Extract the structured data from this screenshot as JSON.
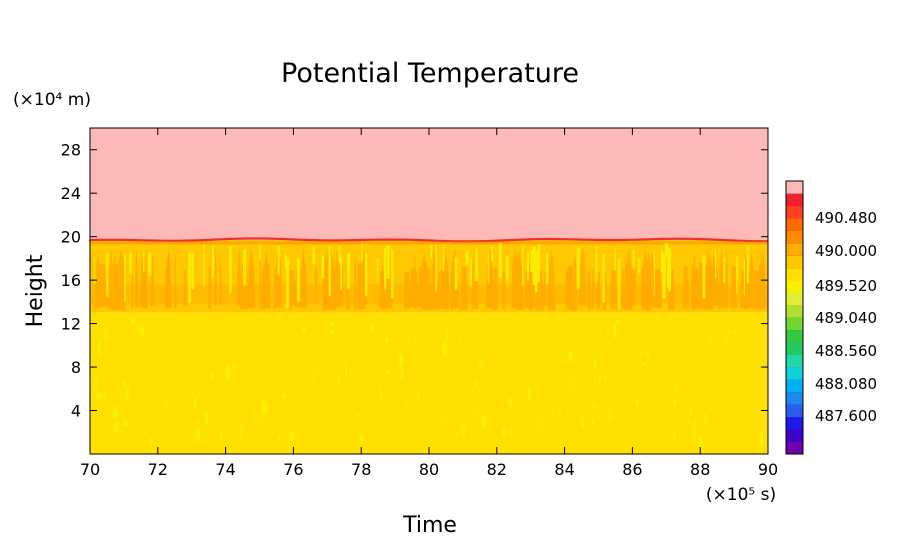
{
  "chart_data": {
    "type": "heatmap",
    "title": "Potential Temperature",
    "xlabel": "Time",
    "ylabel": "Height",
    "x_unit": "(×10⁵ s)",
    "y_unit": "(×10⁴ m)",
    "xlim": [
      70,
      90
    ],
    "ylim": [
      0,
      30
    ],
    "x_ticks": [
      "70",
      "72",
      "74",
      "76",
      "78",
      "80",
      "82",
      "84",
      "86",
      "88",
      "90"
    ],
    "y_ticks": [
      "4",
      "8",
      "12",
      "16",
      "20",
      "24",
      "28"
    ],
    "colorbar": {
      "labels": [
        "490.480",
        "490.000",
        "489.520",
        "489.040",
        "488.560",
        "488.080",
        "487.600"
      ],
      "colors": [
        "#6f00ad",
        "#3f00c8",
        "#1a1aeb",
        "#2a5cf0",
        "#1f88f0",
        "#00b0f0",
        "#10d0d8",
        "#20d8a8",
        "#20cc60",
        "#35c940",
        "#70d830",
        "#b0e030",
        "#e0f030",
        "#f8f000",
        "#ffe000",
        "#ffc800",
        "#ffab00",
        "#ff8c00",
        "#ff6a00",
        "#ff4020",
        "#f02030",
        "#fdb8b8"
      ]
    },
    "regions": [
      {
        "name": "upper layer",
        "y_range": [
          19.7,
          30
        ],
        "color": "#fdb8b8"
      },
      {
        "name": "interface",
        "y_value": 19.7,
        "color": "#f03030"
      },
      {
        "name": "mixed layer",
        "y_range": [
          13,
          19.7
        ],
        "color": "#ffc800"
      },
      {
        "name": "lower layer",
        "y_range": [
          0,
          13
        ],
        "color": "#ffe000"
      }
    ]
  }
}
